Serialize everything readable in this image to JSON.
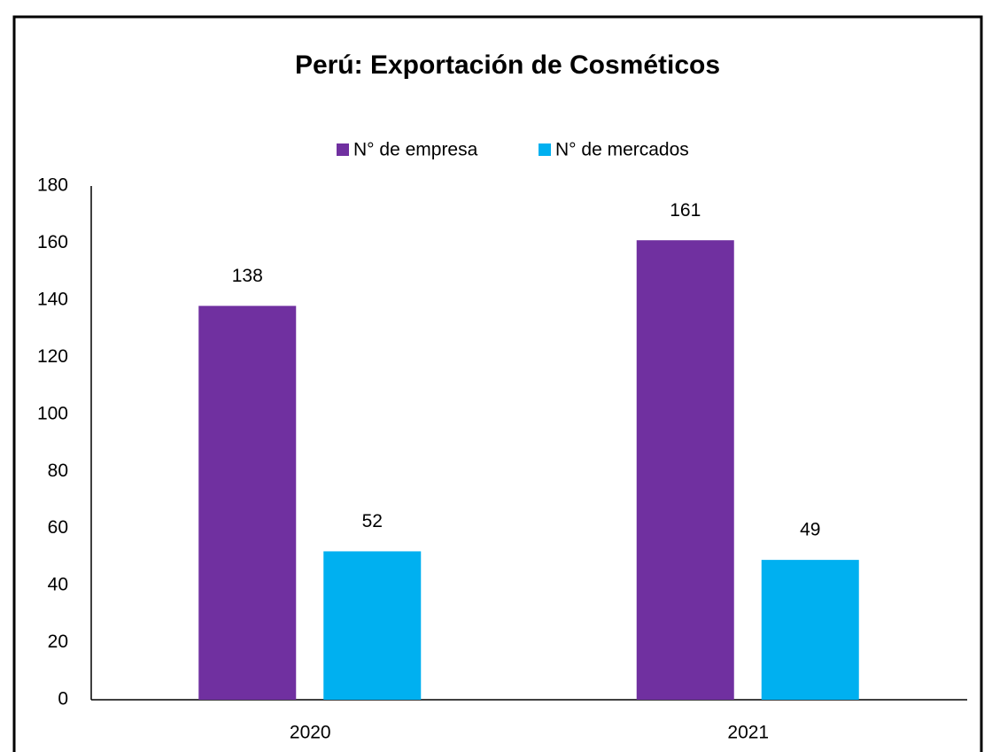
{
  "chart_data": {
    "type": "bar",
    "title": "Perú: Exportación de Cosméticos",
    "categories": [
      "2020",
      "2021"
    ],
    "series": [
      {
        "name": "N° de empresa",
        "color": "#7030a0",
        "values": [
          138,
          161
        ]
      },
      {
        "name": "N° de mercados",
        "color": "#00b0f0",
        "values": [
          52,
          49
        ]
      }
    ],
    "ylim": [
      0,
      180
    ],
    "yticks": [
      0,
      20,
      40,
      60,
      80,
      100,
      120,
      140,
      160,
      180
    ],
    "grid": false,
    "legend": "top"
  }
}
